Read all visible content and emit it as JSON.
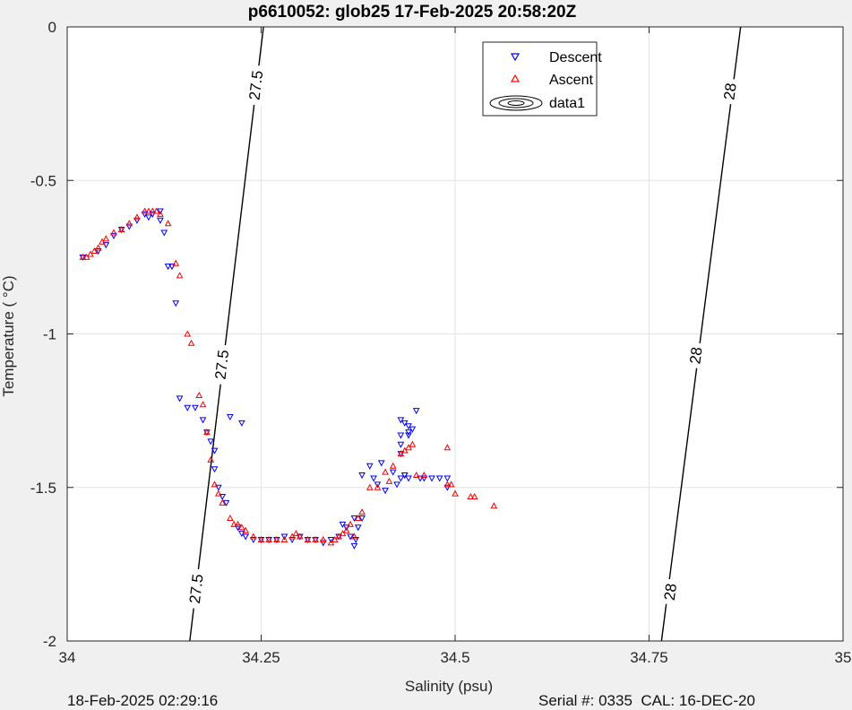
{
  "footer": {
    "left": "18-Feb-2025 02:29:16",
    "right": "Serial #: 0335  CAL: 16-DEC-20"
  },
  "chart_data": {
    "type": "scatter",
    "title": "p6610052: glob25 17-Feb-2025 20:58:20Z",
    "xlabel": "Salinity (psu)",
    "ylabel": "Temperature (   °C)",
    "xlim": [
      34,
      35
    ],
    "ylim": [
      -2,
      0
    ],
    "xticks": [
      "34",
      "34.25",
      "34.5",
      "34.75",
      "35"
    ],
    "yticks": [
      "0",
      "-0.5",
      "-1",
      "-1.5",
      "-2"
    ],
    "grid": true,
    "legend": {
      "placement": "top-right",
      "entries": [
        "Descent",
        "Ascent",
        "data1"
      ]
    },
    "contours": [
      {
        "label": "27.5",
        "line": [
          [
            34.158,
            -2.0
          ],
          [
            34.253,
            0.0
          ]
        ],
        "label_positions": [
          [
            34.166,
            -1.83
          ],
          [
            34.199,
            -1.1
          ],
          [
            34.243,
            -0.19
          ]
        ]
      },
      {
        "label": "28",
        "line": [
          [
            34.766,
            -2.0
          ],
          [
            34.868,
            0.0
          ]
        ],
        "label_positions": [
          [
            34.777,
            -1.84
          ],
          [
            34.81,
            -1.07
          ],
          [
            34.854,
            -0.21
          ]
        ]
      }
    ],
    "series": [
      {
        "name": "Descent",
        "marker": "triangle-down",
        "color": "#0000ff",
        "points": [
          [
            34.02,
            -0.75
          ],
          [
            34.04,
            -0.73
          ],
          [
            34.05,
            -0.71
          ],
          [
            34.06,
            -0.68
          ],
          [
            34.07,
            -0.66
          ],
          [
            34.08,
            -0.65
          ],
          [
            34.09,
            -0.63
          ],
          [
            34.1,
            -0.61
          ],
          [
            34.105,
            -0.62
          ],
          [
            34.11,
            -0.61
          ],
          [
            34.12,
            -0.6
          ],
          [
            34.12,
            -0.63
          ],
          [
            34.125,
            -0.67
          ],
          [
            34.13,
            -0.78
          ],
          [
            34.135,
            -0.78
          ],
          [
            34.14,
            -0.9
          ],
          [
            34.145,
            -1.21
          ],
          [
            34.155,
            -1.24
          ],
          [
            34.165,
            -1.24
          ],
          [
            34.175,
            -1.28
          ],
          [
            34.18,
            -1.32
          ],
          [
            34.185,
            -1.35
          ],
          [
            34.19,
            -1.38
          ],
          [
            34.19,
            -1.44
          ],
          [
            34.195,
            -1.5
          ],
          [
            34.2,
            -1.53
          ],
          [
            34.205,
            -1.55
          ],
          [
            34.21,
            -1.27
          ],
          [
            34.225,
            -1.29
          ],
          [
            34.22,
            -1.63
          ],
          [
            34.225,
            -1.65
          ],
          [
            34.23,
            -1.66
          ],
          [
            34.24,
            -1.67
          ],
          [
            34.25,
            -1.67
          ],
          [
            34.26,
            -1.67
          ],
          [
            34.27,
            -1.67
          ],
          [
            34.28,
            -1.66
          ],
          [
            34.29,
            -1.67
          ],
          [
            34.3,
            -1.66
          ],
          [
            34.31,
            -1.67
          ],
          [
            34.32,
            -1.67
          ],
          [
            34.33,
            -1.68
          ],
          [
            34.34,
            -1.67
          ],
          [
            34.35,
            -1.66
          ],
          [
            34.355,
            -1.62
          ],
          [
            34.36,
            -1.63
          ],
          [
            34.365,
            -1.66
          ],
          [
            34.37,
            -1.69
          ],
          [
            34.372,
            -1.67
          ],
          [
            34.375,
            -1.63
          ],
          [
            34.38,
            -1.6
          ],
          [
            34.37,
            -1.6
          ],
          [
            34.38,
            -1.46
          ],
          [
            34.39,
            -1.43
          ],
          [
            34.395,
            -1.47
          ],
          [
            34.4,
            -1.49
          ],
          [
            34.405,
            -1.42
          ],
          [
            34.41,
            -1.51
          ],
          [
            34.42,
            -1.45
          ],
          [
            34.425,
            -1.49
          ],
          [
            34.43,
            -1.47
          ],
          [
            34.435,
            -1.46
          ],
          [
            34.43,
            -1.39
          ],
          [
            34.43,
            -1.36
          ],
          [
            34.43,
            -1.33
          ],
          [
            34.43,
            -1.28
          ],
          [
            34.435,
            -1.29
          ],
          [
            34.44,
            -1.3
          ],
          [
            34.44,
            -1.32
          ],
          [
            34.44,
            -1.33
          ],
          [
            34.445,
            -1.31
          ],
          [
            34.45,
            -1.25
          ],
          [
            34.435,
            -1.46
          ],
          [
            34.44,
            -1.47
          ],
          [
            34.455,
            -1.47
          ],
          [
            34.46,
            -1.47
          ],
          [
            34.47,
            -1.47
          ],
          [
            34.48,
            -1.47
          ],
          [
            34.49,
            -1.47
          ],
          [
            34.49,
            -1.5
          ]
        ]
      },
      {
        "name": "Ascent",
        "marker": "triangle-up",
        "color": "#ff0000",
        "points": [
          [
            34.02,
            -0.75
          ],
          [
            34.025,
            -0.75
          ],
          [
            34.03,
            -0.74
          ],
          [
            34.035,
            -0.73
          ],
          [
            34.04,
            -0.72
          ],
          [
            34.045,
            -0.7
          ],
          [
            34.05,
            -0.69
          ],
          [
            34.06,
            -0.67
          ],
          [
            34.07,
            -0.66
          ],
          [
            34.08,
            -0.64
          ],
          [
            34.09,
            -0.62
          ],
          [
            34.1,
            -0.6
          ],
          [
            34.105,
            -0.6
          ],
          [
            34.11,
            -0.6
          ],
          [
            34.115,
            -0.6
          ],
          [
            34.12,
            -0.61
          ],
          [
            34.13,
            -0.64
          ],
          [
            34.14,
            -0.77
          ],
          [
            34.145,
            -0.81
          ],
          [
            34.155,
            -1.0
          ],
          [
            34.16,
            -1.03
          ],
          [
            34.17,
            -1.2
          ],
          [
            34.175,
            -1.23
          ],
          [
            34.18,
            -1.32
          ],
          [
            34.185,
            -1.41
          ],
          [
            34.19,
            -1.49
          ],
          [
            34.195,
            -1.52
          ],
          [
            34.2,
            -1.55
          ],
          [
            34.21,
            -1.6
          ],
          [
            34.215,
            -1.62
          ],
          [
            34.22,
            -1.62
          ],
          [
            34.225,
            -1.63
          ],
          [
            34.23,
            -1.64
          ],
          [
            34.24,
            -1.66
          ],
          [
            34.25,
            -1.67
          ],
          [
            34.26,
            -1.67
          ],
          [
            34.27,
            -1.67
          ],
          [
            34.28,
            -1.67
          ],
          [
            34.29,
            -1.66
          ],
          [
            34.295,
            -1.65
          ],
          [
            34.3,
            -1.66
          ],
          [
            34.31,
            -1.67
          ],
          [
            34.32,
            -1.67
          ],
          [
            34.33,
            -1.67
          ],
          [
            34.34,
            -1.68
          ],
          [
            34.345,
            -1.67
          ],
          [
            34.35,
            -1.66
          ],
          [
            34.355,
            -1.65
          ],
          [
            34.36,
            -1.64
          ],
          [
            34.365,
            -1.62
          ],
          [
            34.37,
            -1.66
          ],
          [
            34.375,
            -1.6
          ],
          [
            34.38,
            -1.58
          ],
          [
            34.39,
            -1.5
          ],
          [
            34.4,
            -1.5
          ],
          [
            34.41,
            -1.45
          ],
          [
            34.415,
            -1.48
          ],
          [
            34.42,
            -1.43
          ],
          [
            34.43,
            -1.39
          ],
          [
            34.435,
            -1.38
          ],
          [
            34.44,
            -1.37
          ],
          [
            34.445,
            -1.36
          ],
          [
            34.45,
            -1.46
          ],
          [
            34.46,
            -1.46
          ],
          [
            34.49,
            -1.37
          ],
          [
            34.49,
            -1.49
          ],
          [
            34.495,
            -1.49
          ],
          [
            34.5,
            -1.52
          ],
          [
            34.52,
            -1.53
          ],
          [
            34.525,
            -1.53
          ],
          [
            34.55,
            -1.56
          ]
        ]
      }
    ]
  }
}
